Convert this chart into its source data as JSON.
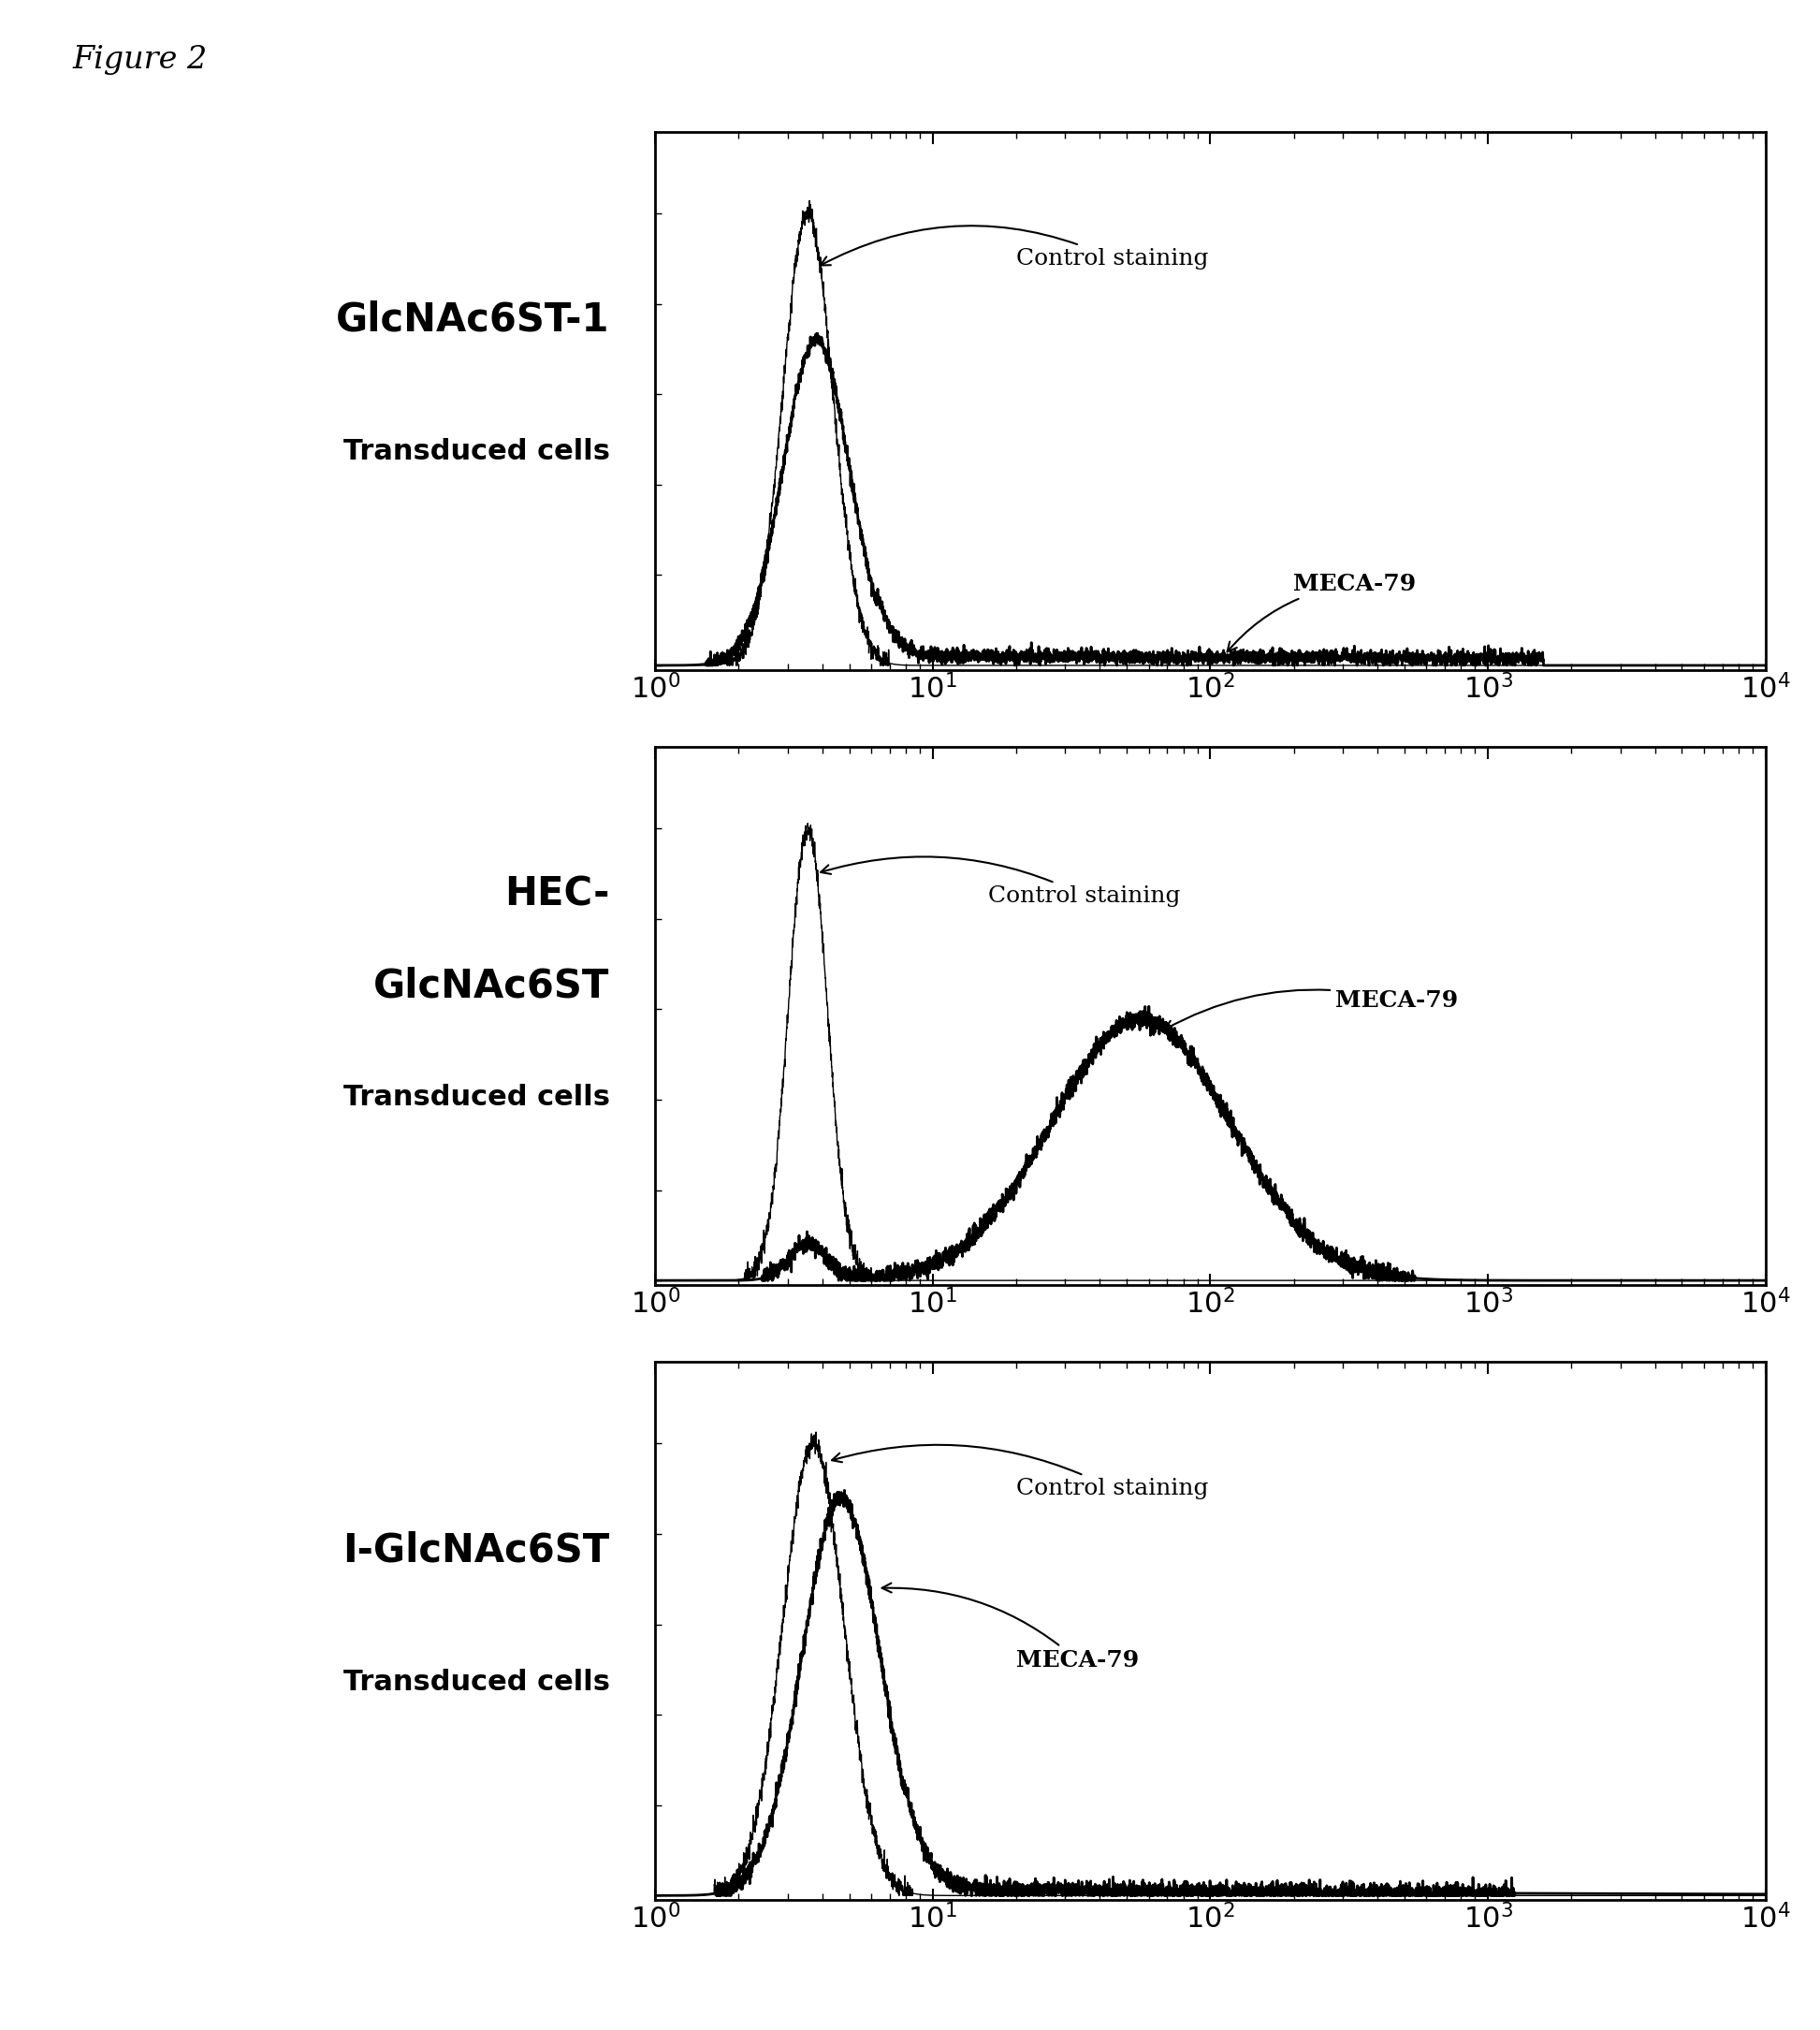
{
  "figure_title": "Figure 2",
  "panels": [
    {
      "label_line1": "GlcNAc6ST-1",
      "label_line2": "Transduced cells",
      "panel_type": 1
    },
    {
      "label_line1": "HEC-",
      "label_line2": "GlcNAc6ST",
      "label_line3": "Transduced cells",
      "panel_type": 2
    },
    {
      "label_line1": "I-GlcNAc6ST",
      "label_line2": "Transduced cells",
      "panel_type": 3
    }
  ],
  "bg_color": "#ffffff",
  "figure_title_fontsize": 24,
  "label_fontsize_large": 30,
  "label_fontsize_small": 22,
  "annot_fontsize": 18
}
